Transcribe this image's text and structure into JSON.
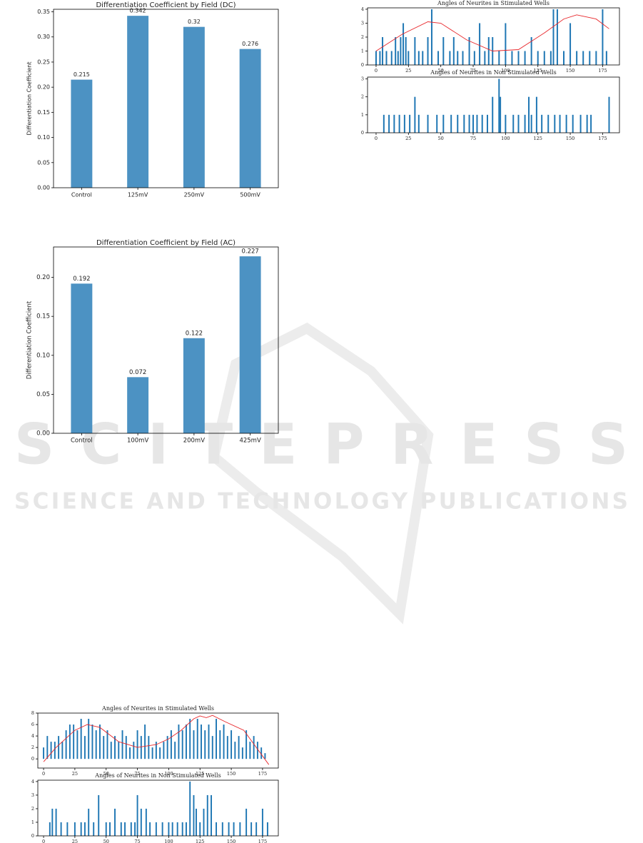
{
  "watermark": {
    "title": "SCITEPRESS",
    "subtitle": "SCIENCE AND TECHNOLOGY PUBLICATIONS"
  },
  "chart_data": [
    {
      "type": "bar",
      "title": "Differentiation Coefficient by Field (DC)",
      "y_label": "Differentiation Coefficient",
      "color": "#4c92c3",
      "categories": [
        "Control",
        "125mV",
        "250mV",
        "500mV"
      ],
      "values": [
        0.215,
        0.342,
        0.32,
        0.276
      ],
      "ylim": [
        0,
        0.355
      ],
      "yticks": [
        {
          "value": 0,
          "label": "0.00"
        },
        {
          "value": 0.05,
          "label": "0.05"
        },
        {
          "value": 0.1,
          "label": "0.10"
        },
        {
          "value": 0.15,
          "label": "0.15"
        },
        {
          "value": 0.2,
          "label": "0.20"
        },
        {
          "value": 0.25,
          "label": "0.25"
        },
        {
          "value": 0.3,
          "label": "0.30"
        },
        {
          "value": 0.35,
          "label": "0.35"
        }
      ]
    },
    {
      "type": "bar",
      "title": "Angles of Neurites in Stimulated Wells",
      "color": "#1f77b4",
      "x": [
        0,
        3,
        5,
        8,
        12,
        15,
        17,
        19,
        21,
        23,
        25,
        30,
        33,
        36,
        40,
        43,
        48,
        52,
        57,
        60,
        63,
        67,
        72,
        76,
        80,
        84,
        87,
        90,
        95,
        100,
        105,
        110,
        115,
        120,
        125,
        130,
        135,
        137,
        140,
        145,
        150,
        155,
        160,
        165,
        170,
        175,
        178
      ],
      "values": [
        1,
        1,
        2,
        1,
        1,
        2,
        1,
        2,
        3,
        2,
        1,
        2,
        1,
        1,
        2,
        4,
        1,
        2,
        1,
        2,
        1,
        1,
        2,
        1,
        3,
        1,
        2,
        2,
        1,
        3,
        1,
        1,
        1,
        2,
        1,
        1,
        1,
        4,
        4,
        1,
        3,
        1,
        1,
        1,
        1,
        4,
        1
      ],
      "curve": {
        "color": "#e8262a",
        "x": [
          0,
          20,
          40,
          50,
          70,
          90,
          110,
          130,
          145,
          155,
          170,
          180
        ],
        "values": [
          1,
          2.2,
          3.1,
          3.0,
          1.8,
          1.0,
          1.1,
          2.3,
          3.3,
          3.6,
          3.3,
          2.6
        ]
      },
      "xlim": [
        -6.6,
        188
      ],
      "ylim": [
        0,
        4.1
      ],
      "xticks": [
        0,
        25,
        50,
        75,
        100,
        125,
        150,
        175
      ],
      "yticks": [
        0,
        1,
        2,
        3,
        4
      ]
    },
    {
      "type": "bar",
      "title": "Angles of Neurites in Non Stimulated Wells",
      "color": "#1f77b4",
      "x": [
        6,
        10,
        14,
        18,
        22,
        26,
        30,
        33,
        40,
        47,
        52,
        58,
        63,
        68,
        72,
        75,
        78,
        82,
        86,
        90,
        95,
        96,
        100,
        106,
        110,
        115,
        118,
        120,
        124,
        128,
        133,
        138,
        142,
        147,
        152,
        158,
        163,
        166,
        180
      ],
      "values": [
        1,
        1,
        1,
        1,
        1,
        1,
        2,
        1,
        1,
        1,
        1,
        1,
        1,
        1,
        1,
        1,
        1,
        1,
        1,
        2,
        3,
        2,
        1,
        1,
        1,
        1,
        2,
        1,
        2,
        1,
        1,
        1,
        1,
        1,
        1,
        1,
        1,
        1,
        2
      ],
      "xlim": [
        -6.6,
        188
      ],
      "ylim": [
        0,
        3.1
      ],
      "xticks": [
        0,
        25,
        50,
        75,
        100,
        125,
        150,
        175
      ],
      "yticks": [
        0,
        1,
        2,
        3
      ]
    },
    {
      "type": "bar",
      "title": "Differentiation Coefficient by Field (AC)",
      "y_label": "Differentiation Coefficient",
      "color": "#4c92c3",
      "categories": [
        "Control",
        "100mV",
        "200mV",
        "425mV"
      ],
      "values": [
        0.192,
        0.072,
        0.122,
        0.227
      ],
      "ylim": [
        0,
        0.239
      ],
      "yticks": [
        {
          "value": 0,
          "label": "0.00"
        },
        {
          "value": 0.05,
          "label": "0.05"
        },
        {
          "value": 0.1,
          "label": "0.10"
        },
        {
          "value": 0.15,
          "label": "0.15"
        },
        {
          "value": 0.2,
          "label": "0.20"
        }
      ]
    },
    {
      "type": "bar",
      "title": "Angles of Neurites in Stimulated Wells",
      "color": "#1f77b4",
      "x": [
        0,
        3,
        6,
        9,
        12,
        15,
        18,
        21,
        24,
        27,
        30,
        33,
        36,
        39,
        42,
        45,
        48,
        51,
        54,
        57,
        60,
        63,
        66,
        69,
        72,
        75,
        78,
        81,
        84,
        87,
        90,
        93,
        96,
        99,
        102,
        105,
        108,
        111,
        114,
        117,
        120,
        123,
        126,
        129,
        132,
        135,
        138,
        141,
        144,
        147,
        150,
        153,
        156,
        159,
        162,
        165,
        168,
        171,
        174,
        177
      ],
      "values": [
        2,
        4,
        3,
        3,
        4,
        3,
        5,
        6,
        6,
        5,
        7,
        4,
        7,
        6,
        5,
        6,
        4,
        5,
        3,
        4,
        3,
        5,
        4,
        2,
        3,
        5,
        4,
        6,
        4,
        2,
        3,
        2,
        3,
        4,
        5,
        3,
        6,
        5,
        6,
        7,
        5,
        7,
        6,
        5,
        6,
        4,
        7,
        5,
        6,
        4,
        5,
        3,
        4,
        2,
        5,
        3,
        4,
        3,
        2,
        1
      ],
      "curve": {
        "color": "#e8262a",
        "x": [
          0,
          10,
          25,
          35,
          45,
          60,
          75,
          90,
          100,
          110,
          120,
          125,
          130,
          135,
          145,
          160,
          170,
          180
        ],
        "values": [
          -0.5,
          2,
          5,
          6,
          5.5,
          3,
          2,
          2.5,
          3.5,
          5,
          7,
          7.5,
          7.2,
          7.6,
          6.5,
          5,
          2,
          -1
        ]
      },
      "xlim": [
        -4.6,
        187.6
      ],
      "ylim": [
        -1.6,
        8
      ],
      "xticks": [
        0,
        25,
        50,
        75,
        100,
        125,
        150,
        175
      ],
      "yticks": [
        0,
        2,
        4,
        6,
        8
      ]
    },
    {
      "type": "bar",
      "title": "Angles of Neurites in Non Stimulated Wells",
      "color": "#1f77b4",
      "x": [
        5,
        7,
        10,
        14,
        19,
        25,
        30,
        33,
        36,
        40,
        44,
        50,
        53,
        57,
        62,
        65,
        70,
        73,
        75,
        78,
        82,
        85,
        90,
        95,
        100,
        103,
        107,
        111,
        114,
        117,
        120,
        122,
        125,
        128,
        131,
        134,
        138,
        143,
        148,
        152,
        157,
        162,
        166,
        170,
        175,
        179
      ],
      "values": [
        1,
        2,
        2,
        1,
        1,
        1,
        1,
        1,
        2,
        1,
        3,
        1,
        1,
        2,
        1,
        1,
        1,
        1,
        3,
        2,
        2,
        1,
        1,
        1,
        1,
        1,
        1,
        1,
        1,
        4,
        3,
        2,
        1,
        2,
        3,
        3,
        1,
        1,
        1,
        1,
        1,
        2,
        1,
        1,
        2,
        1
      ],
      "xlim": [
        -4.6,
        187.6
      ],
      "ylim": [
        0,
        4.1
      ],
      "xticks": [
        0,
        25,
        50,
        75,
        100,
        125,
        150,
        175
      ],
      "yticks": [
        0,
        1,
        2,
        3,
        4
      ]
    }
  ]
}
